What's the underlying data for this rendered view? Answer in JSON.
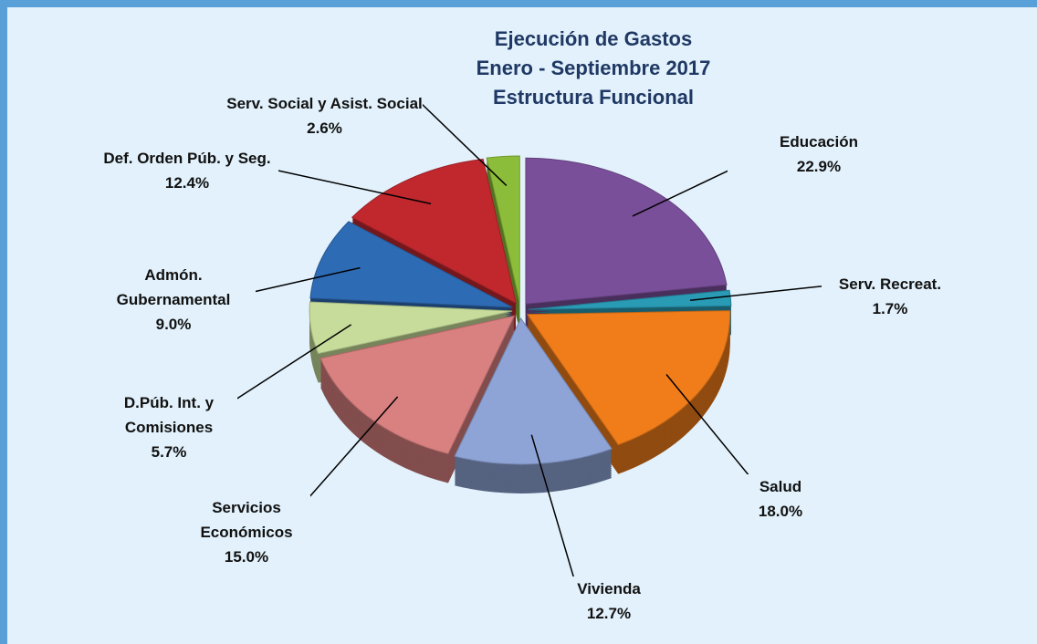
{
  "chart_data": {
    "type": "pie",
    "title": [
      "Ejecución de Gastos",
      "Enero - Septiembre 2017",
      "Estructura Funcional"
    ],
    "categories": [
      "Educación",
      "Serv. Recreat.",
      "Salud",
      "Vivienda",
      "Servicios Económicos",
      "D.Púb. Int. y Comisiones",
      "Admón. Gubernamental",
      "Def. Orden Púb. y Seg.",
      "Serv. Social y Asist. Social"
    ],
    "values": [
      22.9,
      1.7,
      18.0,
      12.7,
      15.0,
      5.7,
      9.0,
      12.4,
      2.6
    ],
    "value_labels": [
      "22.9%",
      "1.7%",
      "18.0%",
      "12.7%",
      "15.0%",
      "5.7%",
      "9.0%",
      "12.4%",
      "2.6%"
    ],
    "colors": [
      "#7a4f9a",
      "#2a9bb5",
      "#f07d1a",
      "#8ea4d6",
      "#d98080",
      "#c7dc9a",
      "#2e6bb5",
      "#c0282e",
      "#8cbd3a"
    ]
  }
}
